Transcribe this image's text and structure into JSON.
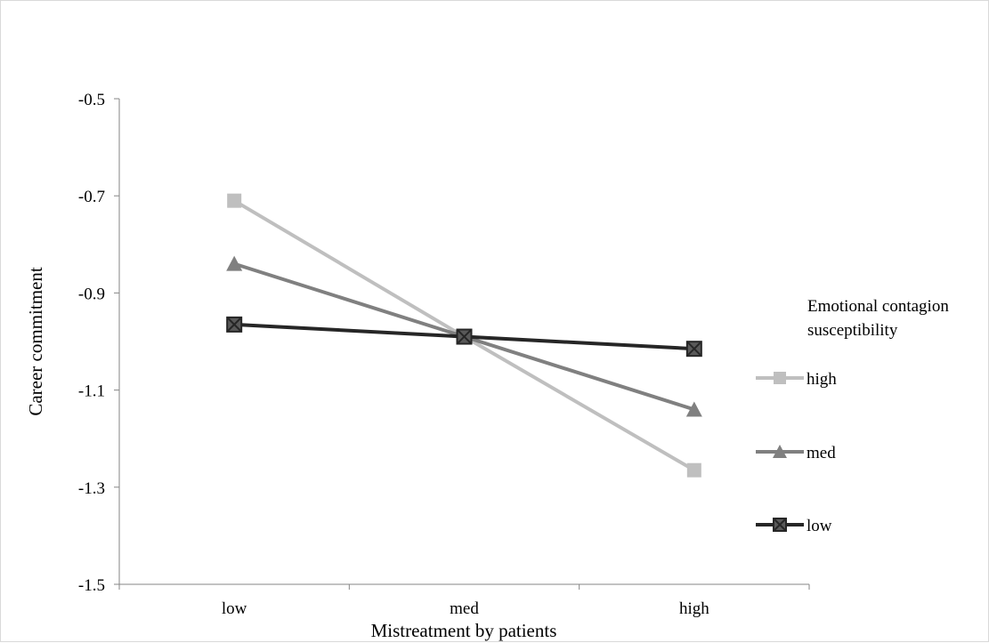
{
  "chart_data": {
    "type": "line",
    "title": "",
    "xlabel": "Mistreatment by patients",
    "ylabel": "Career commitment",
    "categories": [
      "low",
      "med",
      "high"
    ],
    "ylim": [
      -1.5,
      -0.5
    ],
    "yticks": [
      "-0.5",
      "-0.7",
      "-0.9",
      "-1.1",
      "-1.3",
      "-1.5"
    ],
    "ytick_values": [
      -0.5,
      -0.7,
      -0.9,
      -1.1,
      -1.3,
      -1.5
    ],
    "grid": false,
    "legend": {
      "title": "Emotional contagion susceptibility",
      "title_lines": [
        "Emotional contagion",
        "susceptibility"
      ],
      "placement": "right"
    },
    "series": [
      {
        "name": "high",
        "values": [
          -0.71,
          -0.99,
          -1.265
        ],
        "color": "#bfbfbf",
        "marker": "square"
      },
      {
        "name": "med",
        "values": [
          -0.84,
          -0.99,
          -1.14
        ],
        "color": "#808080",
        "marker": "triangle"
      },
      {
        "name": "low",
        "values": [
          -0.965,
          -0.99,
          -1.015
        ],
        "color": "#262626",
        "marker": "x-square"
      }
    ]
  }
}
